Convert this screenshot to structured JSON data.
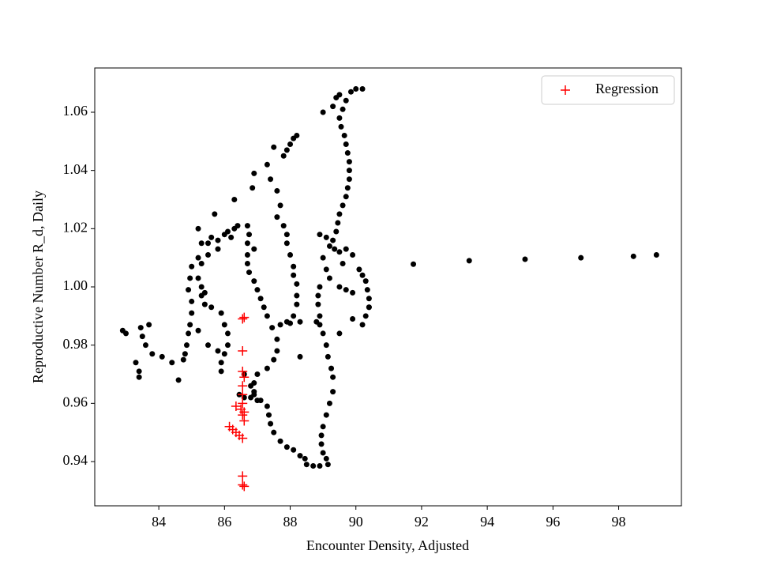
{
  "chart_data": {
    "type": "scatter",
    "xlabel": "Encounter Density, Adjusted",
    "ylabel": "Reproductive Number R_d, Daily",
    "xlim": [
      82.05,
      99.91
    ],
    "ylim": [
      0.9248,
      1.0752
    ],
    "xticks": [
      84,
      86,
      88,
      90,
      92,
      94,
      96,
      98
    ],
    "yticks": [
      0.94,
      0.96,
      0.98,
      {
        "value": 1,
        "label": "1.00"
      },
      1.02,
      1.04,
      1.06
    ],
    "legend": "upper right",
    "series": [
      {
        "color": "#000000",
        "marker": "circle",
        "x": [
          99.15,
          98.45,
          96.85,
          95.15,
          93.45,
          91.75,
          90.2,
          90.0,
          89.85,
          89.7,
          89.6,
          89.5,
          89.55,
          89.65,
          89.7,
          89.75,
          89.8,
          89.8,
          89.8,
          89.75,
          89.7,
          89.6,
          89.5,
          89.45,
          89.4,
          89.3,
          89.35,
          89.5,
          89.7,
          89.9,
          89.6,
          89.2,
          88.9,
          89.1,
          89.0,
          89.1,
          89.2,
          89.0,
          89.3,
          89.4,
          89.5,
          90.1,
          90.2,
          90.3,
          90.35,
          90.4,
          90.4,
          90.3,
          90.2,
          89.5,
          89.7,
          89.9,
          88.9,
          88.85,
          88.85,
          88.9,
          88.9,
          89.0,
          89.1,
          89.15,
          89.25,
          89.3,
          89.3,
          89.2,
          89.1,
          89.0,
          88.95,
          88.95,
          89.0,
          89.1,
          89.15,
          88.9,
          88.7,
          88.5,
          88.45,
          88.3,
          88.1,
          87.9,
          87.7,
          87.5,
          87.4,
          87.35,
          87.3,
          87.1,
          86.9,
          86.8,
          86.6,
          86.45,
          86.6,
          86.8,
          87.0,
          86.7,
          86.75,
          86.7,
          86.7,
          86.7,
          86.75,
          86.9,
          87.0,
          87.1,
          87.2,
          87.3,
          87.45,
          87.6,
          87.6,
          87.5,
          87.3,
          87.0,
          86.9,
          86.9,
          86.3,
          86.2,
          85.8,
          85.5,
          85.3,
          85.2,
          85.3,
          85.3,
          85.4,
          85.6,
          85.9,
          86.0,
          86.1,
          86.1,
          86.0,
          85.9,
          85.9,
          85.2,
          85.0,
          84.95,
          84.9,
          85.0,
          85.0,
          84.95,
          84.9,
          84.85,
          84.8,
          84.75,
          84.6,
          84.4,
          84.1,
          83.8,
          83.6,
          83.5,
          83.45,
          83.7,
          83.3,
          83.4,
          83.4,
          82.9,
          83.0,
          85.4,
          85.2,
          85.5,
          85.8,
          85.5,
          85.6,
          85.8,
          86.0,
          86.1,
          86.4,
          85.7,
          86.3,
          85.3,
          85.2,
          86.9,
          86.85,
          86.9,
          87.3,
          87.4,
          87.6,
          87.5,
          87.8,
          87.9,
          88.0,
          88.1,
          88.2,
          87.7,
          87.6,
          87.8,
          87.9,
          87.9,
          88.0,
          88.1,
          88.1,
          88.2,
          88.2,
          88.2,
          88.1,
          87.9,
          87.7,
          88.3,
          88.0,
          88.3,
          88.8,
          89.5,
          89.9,
          90.4
        ],
        "values": [
          1.011,
          1.0105,
          1.01,
          1.0095,
          1.009,
          1.0078,
          1.068,
          1.068,
          1.067,
          1.064,
          1.061,
          1.058,
          1.055,
          1.052,
          1.049,
          1.046,
          1.043,
          1.04,
          1.037,
          1.034,
          1.031,
          1.028,
          1.025,
          1.022,
          1.019,
          1.016,
          1.013,
          1.012,
          1.013,
          1.011,
          1.008,
          1.014,
          1.018,
          1.017,
          1.01,
          1.006,
          1.003,
          1.06,
          1.062,
          1.065,
          1.066,
          1.006,
          1.004,
          1.002,
          0.999,
          0.996,
          0.993,
          0.99,
          0.987,
          1.0,
          0.999,
          0.998,
          1.0,
          0.997,
          0.994,
          0.99,
          0.987,
          0.984,
          0.98,
          0.976,
          0.972,
          0.969,
          0.964,
          0.96,
          0.956,
          0.952,
          0.949,
          0.946,
          0.943,
          0.941,
          0.939,
          0.9385,
          0.9385,
          0.939,
          0.941,
          0.942,
          0.944,
          0.945,
          0.947,
          0.95,
          0.953,
          0.956,
          0.959,
          0.961,
          0.963,
          0.966,
          0.97,
          0.963,
          0.962,
          0.962,
          0.961,
          1.021,
          1.018,
          1.015,
          1.011,
          1.008,
          1.005,
          1.002,
          0.999,
          0.996,
          0.993,
          0.99,
          0.986,
          0.982,
          0.978,
          0.975,
          0.972,
          0.97,
          0.967,
          0.964,
          1.02,
          1.017,
          1.013,
          1.011,
          1.008,
          1.003,
          1.0,
          0.997,
          0.994,
          0.993,
          0.991,
          0.987,
          0.984,
          0.98,
          0.977,
          0.974,
          0.971,
          1.01,
          1.007,
          1.003,
          0.999,
          0.995,
          0.991,
          0.987,
          0.984,
          0.98,
          0.977,
          0.975,
          0.968,
          0.974,
          0.976,
          0.977,
          0.98,
          0.983,
          0.986,
          0.987,
          0.974,
          0.971,
          0.969,
          0.985,
          0.984,
          0.998,
          0.985,
          0.98,
          0.978,
          1.015,
          1.017,
          1.016,
          1.018,
          1.019,
          1.021,
          1.025,
          1.03,
          1.015,
          1.02,
          1.013,
          1.034,
          1.039,
          1.042,
          1.037,
          1.033,
          1.048,
          1.045,
          1.047,
          1.049,
          1.051,
          1.052,
          1.028,
          1.024,
          1.021,
          1.018,
          1.015,
          1.011,
          1.007,
          1.004,
          1.001,
          0.997,
          0.994,
          0.99,
          0.988,
          0.987,
          0.988,
          0.9875,
          0.976,
          0.988,
          0.984,
          0.989,
          0.993
        ]
      },
      {
        "name": "Regression",
        "color": "#ff0000",
        "marker": "plus",
        "x": [
          86.55,
          86.6,
          86.55,
          86.55,
          86.6,
          86.55,
          86.55,
          86.55,
          86.5,
          86.6,
          86.55,
          86.6,
          86.35,
          86.15,
          86.25,
          86.35,
          86.45,
          86.55,
          86.55,
          86.55,
          86.6
        ],
        "values": [
          0.989,
          0.9895,
          0.978,
          0.971,
          0.969,
          0.966,
          0.963,
          0.96,
          0.958,
          0.957,
          0.956,
          0.954,
          0.959,
          0.952,
          0.951,
          0.95,
          0.949,
          0.948,
          0.935,
          0.932,
          0.9315
        ]
      }
    ]
  }
}
